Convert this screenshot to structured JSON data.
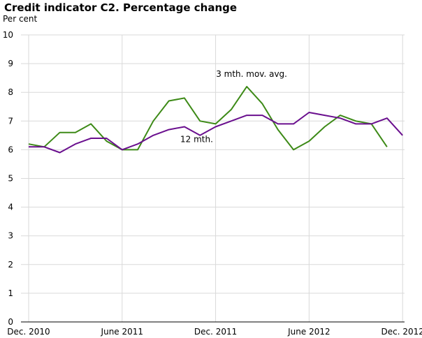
{
  "chart_data": {
    "type": "line",
    "title": "Credit indicator C2. Percentage change",
    "ylabel": "Per cent",
    "xlabel": "",
    "ylim": [
      0,
      10
    ],
    "yticks": [
      "0",
      "1",
      "2",
      "3",
      "4",
      "5",
      "6",
      "7",
      "8",
      "9",
      "10"
    ],
    "x": [
      "2010-12",
      "2011-01",
      "2011-02",
      "2011-03",
      "2011-04",
      "2011-05",
      "2011-06",
      "2011-07",
      "2011-08",
      "2011-09",
      "2011-10",
      "2011-11",
      "2011-12",
      "2012-01",
      "2012-02",
      "2012-03",
      "2012-04",
      "2012-05",
      "2012-06",
      "2012-07",
      "2012-08",
      "2012-09",
      "2012-10",
      "2012-11",
      "2012-12"
    ],
    "xticks": [
      {
        "x": "2010-12",
        "label": "Dec. 2010"
      },
      {
        "x": "2011-06",
        "label": "June 2011"
      },
      {
        "x": "2011-12",
        "label": "Dec. 2011"
      },
      {
        "x": "2012-06",
        "label": "June 2012"
      },
      {
        "x": "2012-12",
        "label": "Dec. 2012"
      }
    ],
    "grid": true,
    "series": [
      {
        "name": "3 mth. mov. avg.",
        "color": "#3d8a17",
        "values": [
          6.2,
          6.1,
          6.6,
          6.6,
          6.9,
          6.3,
          6.0,
          6.0,
          7.0,
          7.7,
          7.8,
          7.0,
          6.9,
          7.4,
          8.2,
          7.6,
          6.7,
          6.0,
          6.3,
          6.8,
          7.2,
          7.0,
          6.9,
          6.1,
          null
        ]
      },
      {
        "name": "12 mth.",
        "color": "#6a0f8e",
        "values": [
          6.1,
          6.1,
          5.9,
          6.2,
          6.4,
          6.4,
          6.0,
          6.2,
          6.5,
          6.7,
          6.8,
          6.5,
          6.8,
          7.0,
          7.2,
          7.2,
          6.9,
          6.9,
          7.3,
          7.2,
          7.1,
          6.9,
          6.9,
          7.1,
          6.5
        ]
      }
    ],
    "annotations": [
      {
        "series": "3 mth. mov. avg.",
        "text": "3 mth. mov. avg."
      },
      {
        "series": "12 mth.",
        "text": "12 mth."
      }
    ]
  }
}
